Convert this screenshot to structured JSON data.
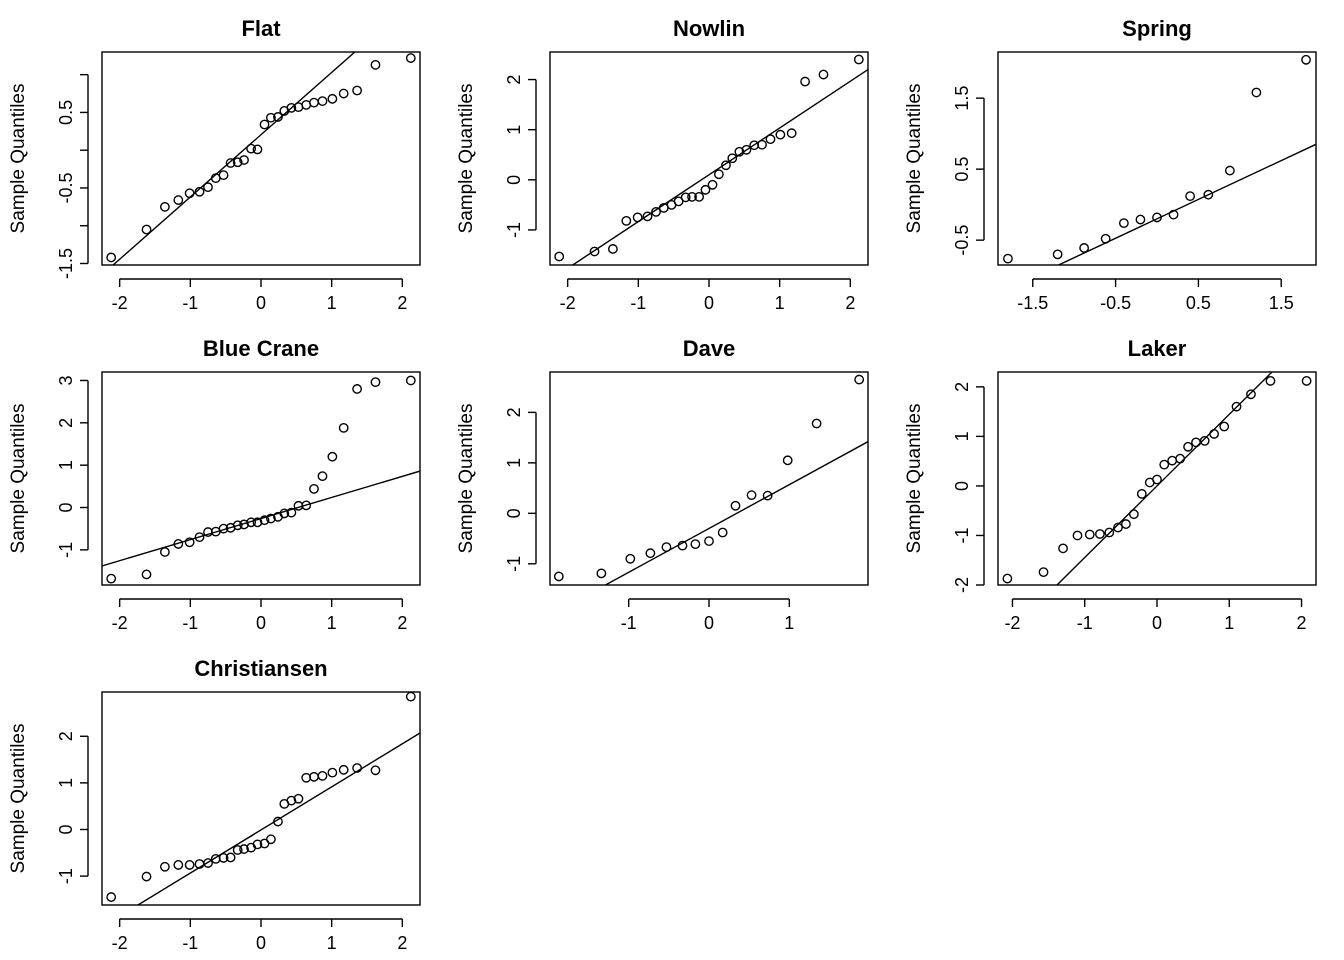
{
  "chart_data": [
    {
      "type": "scatter",
      "title": "Flat",
      "ylabel": "Sample Quantiles",
      "xlim": [
        -2.25,
        2.25
      ],
      "ylim": [
        -1.52,
        1.3
      ],
      "xticks": [
        -2,
        -1,
        0,
        1,
        2
      ],
      "xtick_labels": [
        "-2",
        "-1",
        "0",
        "1",
        "2"
      ],
      "yticks": [
        -1.5,
        -1,
        -0.5,
        0,
        0.5,
        1
      ],
      "ytick_labels": [
        "-1.5",
        "",
        "-0.5",
        "",
        "0.5",
        ""
      ],
      "line": [
        [
          -2.25,
          -1.65
        ],
        [
          2.25,
          2.06
        ]
      ],
      "points": [
        [
          -2.12,
          -1.42
        ],
        [
          -1.62,
          -1.05
        ],
        [
          -1.36,
          -0.75
        ],
        [
          -1.17,
          -0.66
        ],
        [
          -1.01,
          -0.57
        ],
        [
          -0.87,
          -0.55
        ],
        [
          -0.75,
          -0.49
        ],
        [
          -0.64,
          -0.37
        ],
        [
          -0.53,
          -0.33
        ],
        [
          -0.43,
          -0.17
        ],
        [
          -0.33,
          -0.16
        ],
        [
          -0.24,
          -0.13
        ],
        [
          -0.14,
          0.02
        ],
        [
          -0.05,
          0.01
        ],
        [
          0.05,
          0.34
        ],
        [
          0.14,
          0.43
        ],
        [
          0.24,
          0.44
        ],
        [
          0.33,
          0.52
        ],
        [
          0.43,
          0.56
        ],
        [
          0.53,
          0.57
        ],
        [
          0.64,
          0.6
        ],
        [
          0.75,
          0.63
        ],
        [
          0.87,
          0.65
        ],
        [
          1.01,
          0.68
        ],
        [
          1.17,
          0.75
        ],
        [
          1.36,
          0.79
        ],
        [
          1.62,
          1.13
        ],
        [
          2.12,
          1.22
        ]
      ]
    },
    {
      "type": "scatter",
      "title": "Nowlin",
      "ylabel": "Sample Quantiles",
      "xlim": [
        -2.25,
        2.25
      ],
      "ylim": [
        -1.7,
        2.55
      ],
      "xticks": [
        -2,
        -1,
        0,
        1,
        2
      ],
      "xtick_labels": [
        "-2",
        "-1",
        "0",
        "1",
        "2"
      ],
      "yticks": [
        -1,
        0,
        1,
        2
      ],
      "ytick_labels": [
        "-1",
        "0",
        "1",
        "2"
      ],
      "line": [
        [
          -2.25,
          -2.0
        ],
        [
          2.25,
          2.2
        ]
      ],
      "points": [
        [
          -2.12,
          -1.53
        ],
        [
          -1.62,
          -1.43
        ],
        [
          -1.36,
          -1.38
        ],
        [
          -1.17,
          -0.82
        ],
        [
          -1.01,
          -0.75
        ],
        [
          -0.87,
          -0.73
        ],
        [
          -0.75,
          -0.64
        ],
        [
          -0.64,
          -0.56
        ],
        [
          -0.53,
          -0.5
        ],
        [
          -0.43,
          -0.43
        ],
        [
          -0.33,
          -0.35
        ],
        [
          -0.24,
          -0.34
        ],
        [
          -0.14,
          -0.34
        ],
        [
          -0.05,
          -0.2
        ],
        [
          0.05,
          -0.1
        ],
        [
          0.14,
          0.11
        ],
        [
          0.24,
          0.29
        ],
        [
          0.33,
          0.43
        ],
        [
          0.43,
          0.56
        ],
        [
          0.53,
          0.6
        ],
        [
          0.64,
          0.69
        ],
        [
          0.75,
          0.7
        ],
        [
          0.87,
          0.81
        ],
        [
          1.01,
          0.9
        ],
        [
          1.17,
          0.93
        ],
        [
          1.36,
          1.96
        ],
        [
          1.62,
          2.1
        ],
        [
          2.12,
          2.4
        ]
      ]
    },
    {
      "type": "scatter",
      "title": "Spring",
      "ylabel": "Sample Quantiles",
      "xlim": [
        -1.92,
        1.92
      ],
      "ylim": [
        -0.85,
        2.15
      ],
      "xticks": [
        -1.5,
        -0.5,
        0.5,
        1.5
      ],
      "xtick_labels": [
        "-1.5",
        "-0.5",
        "0.5",
        "1.5"
      ],
      "yticks": [
        -0.5,
        0.5,
        1.5
      ],
      "ytick_labels": [
        "-0.5",
        "0.5",
        "1.5"
      ],
      "line": [
        [
          -1.92,
          -1.25
        ],
        [
          1.92,
          0.85
        ]
      ],
      "points": [
        [
          -1.8,
          -0.76
        ],
        [
          -1.2,
          -0.7
        ],
        [
          -0.88,
          -0.61
        ],
        [
          -0.62,
          -0.48
        ],
        [
          -0.4,
          -0.26
        ],
        [
          -0.2,
          -0.21
        ],
        [
          0.0,
          -0.18
        ],
        [
          0.2,
          -0.14
        ],
        [
          0.4,
          0.12
        ],
        [
          0.62,
          0.14
        ],
        [
          0.88,
          0.48
        ],
        [
          1.2,
          1.58
        ],
        [
          1.8,
          2.04
        ]
      ]
    },
    {
      "type": "scatter",
      "title": "Blue Crane",
      "ylabel": "Sample Quantiles",
      "xlim": [
        -2.25,
        2.25
      ],
      "ylim": [
        -1.83,
        3.2
      ],
      "xticks": [
        -2,
        -1,
        0,
        1,
        2
      ],
      "xtick_labels": [
        "-2",
        "-1",
        "0",
        "1",
        "2"
      ],
      "yticks": [
        -1,
        0,
        1,
        2,
        3
      ],
      "ytick_labels": [
        "-1",
        "0",
        "1",
        "2",
        "3"
      ],
      "line": [
        [
          -2.25,
          -1.38
        ],
        [
          2.25,
          0.86
        ]
      ],
      "points": [
        [
          -2.12,
          -1.68
        ],
        [
          -1.62,
          -1.58
        ],
        [
          -1.36,
          -1.05
        ],
        [
          -1.17,
          -0.86
        ],
        [
          -1.01,
          -0.82
        ],
        [
          -0.87,
          -0.7
        ],
        [
          -0.75,
          -0.58
        ],
        [
          -0.64,
          -0.57
        ],
        [
          -0.53,
          -0.5
        ],
        [
          -0.43,
          -0.48
        ],
        [
          -0.33,
          -0.42
        ],
        [
          -0.24,
          -0.4
        ],
        [
          -0.14,
          -0.35
        ],
        [
          -0.05,
          -0.35
        ],
        [
          0.05,
          -0.3
        ],
        [
          0.14,
          -0.26
        ],
        [
          0.24,
          -0.22
        ],
        [
          0.33,
          -0.14
        ],
        [
          0.43,
          -0.12
        ],
        [
          0.53,
          0.04
        ],
        [
          0.64,
          0.05
        ],
        [
          0.75,
          0.44
        ],
        [
          0.87,
          0.74
        ],
        [
          1.01,
          1.2
        ],
        [
          1.17,
          1.88
        ],
        [
          1.36,
          2.8
        ],
        [
          1.62,
          2.96
        ],
        [
          2.12,
          3.0
        ]
      ]
    },
    {
      "type": "scatter",
      "title": "Dave",
      "ylabel": "Sample Quantiles",
      "xlim": [
        -1.98,
        1.98
      ],
      "ylim": [
        -1.42,
        2.8
      ],
      "xticks": [
        -1,
        0,
        1
      ],
      "xtick_labels": [
        "-1",
        "0",
        "1"
      ],
      "yticks": [
        -1,
        0,
        1,
        2
      ],
      "ytick_labels": [
        "-1",
        "0",
        "1",
        "2"
      ],
      "line": [
        [
          -1.98,
          -2.02
        ],
        [
          1.98,
          1.42
        ]
      ],
      "points": [
        [
          -1.87,
          -1.25
        ],
        [
          -1.34,
          -1.19
        ],
        [
          -0.98,
          -0.9
        ],
        [
          -0.73,
          -0.79
        ],
        [
          -0.53,
          -0.67
        ],
        [
          -0.33,
          -0.64
        ],
        [
          -0.17,
          -0.61
        ],
        [
          0.0,
          -0.55
        ],
        [
          0.17,
          -0.38
        ],
        [
          0.33,
          0.15
        ],
        [
          0.53,
          0.36
        ],
        [
          0.73,
          0.35
        ],
        [
          0.98,
          1.05
        ],
        [
          1.34,
          1.78
        ],
        [
          1.87,
          2.65
        ]
      ]
    },
    {
      "type": "scatter",
      "title": "Laker",
      "ylabel": "Sample Quantiles",
      "xlim": [
        -2.2,
        2.2
      ],
      "ylim": [
        -2.0,
        2.3
      ],
      "xticks": [
        -2,
        -1,
        0,
        1,
        2
      ],
      "xtick_labels": [
        "-2",
        "-1",
        "0",
        "1",
        "2"
      ],
      "yticks": [
        -2,
        -1,
        0,
        1,
        2
      ],
      "ytick_labels": [
        "-2",
        "-1",
        "0",
        "1",
        "2"
      ],
      "line": [
        [
          -2.2,
          -3.18
        ],
        [
          2.2,
          3.18
        ]
      ],
      "points": [
        [
          -2.07,
          -1.87
        ],
        [
          -1.57,
          -1.74
        ],
        [
          -1.3,
          -1.26
        ],
        [
          -1.1,
          -1.0
        ],
        [
          -0.93,
          -0.98
        ],
        [
          -0.79,
          -0.97
        ],
        [
          -0.66,
          -0.94
        ],
        [
          -0.54,
          -0.84
        ],
        [
          -0.43,
          -0.77
        ],
        [
          -0.32,
          -0.57
        ],
        [
          -0.21,
          -0.16
        ],
        [
          -0.1,
          0.07
        ],
        [
          0.0,
          0.13
        ],
        [
          0.1,
          0.43
        ],
        [
          0.21,
          0.51
        ],
        [
          0.32,
          0.55
        ],
        [
          0.43,
          0.79
        ],
        [
          0.54,
          0.88
        ],
        [
          0.66,
          0.91
        ],
        [
          0.79,
          1.05
        ],
        [
          0.93,
          1.2
        ],
        [
          1.1,
          1.6
        ],
        [
          1.3,
          1.85
        ],
        [
          1.57,
          2.12
        ],
        [
          2.07,
          2.12
        ]
      ]
    },
    {
      "type": "scatter",
      "title": "Christiansen",
      "ylabel": "Sample Quantiles",
      "xlim": [
        -2.25,
        2.25
      ],
      "ylim": [
        -1.62,
        2.95
      ],
      "xticks": [
        -2,
        -1,
        0,
        1,
        2
      ],
      "xtick_labels": [
        "-2",
        "-1",
        "0",
        "1",
        "2"
      ],
      "yticks": [
        -1,
        0,
        1,
        2
      ],
      "ytick_labels": [
        "-1",
        "0",
        "1",
        "2"
      ],
      "line": [
        [
          -2.25,
          -2.09
        ],
        [
          2.25,
          2.07
        ]
      ],
      "points": [
        [
          -2.12,
          -1.45
        ],
        [
          -1.62,
          -1.01
        ],
        [
          -1.36,
          -0.8
        ],
        [
          -1.17,
          -0.76
        ],
        [
          -1.01,
          -0.76
        ],
        [
          -0.87,
          -0.74
        ],
        [
          -0.75,
          -0.72
        ],
        [
          -0.64,
          -0.63
        ],
        [
          -0.53,
          -0.61
        ],
        [
          -0.43,
          -0.6
        ],
        [
          -0.33,
          -0.44
        ],
        [
          -0.24,
          -0.42
        ],
        [
          -0.14,
          -0.39
        ],
        [
          -0.05,
          -0.32
        ],
        [
          0.05,
          -0.3
        ],
        [
          0.14,
          -0.21
        ],
        [
          0.24,
          0.17
        ],
        [
          0.33,
          0.55
        ],
        [
          0.43,
          0.62
        ],
        [
          0.53,
          0.66
        ],
        [
          0.64,
          1.11
        ],
        [
          0.75,
          1.13
        ],
        [
          0.87,
          1.15
        ],
        [
          1.01,
          1.22
        ],
        [
          1.17,
          1.28
        ],
        [
          1.36,
          1.32
        ],
        [
          1.62,
          1.27
        ],
        [
          2.12,
          2.85
        ]
      ]
    }
  ]
}
